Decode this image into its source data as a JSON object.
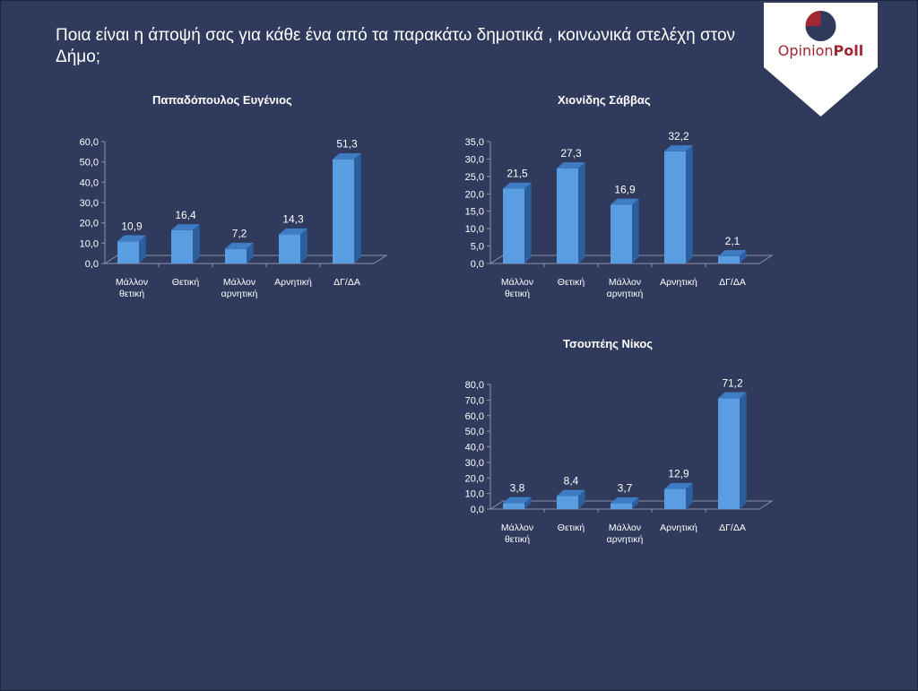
{
  "page": {
    "title": "Ποια είναι η άποψή σας για κάθε ένα από τα παρακάτω δημοτικά , κοινωνικά στελέχη στον Δήμο;"
  },
  "logo": {
    "word1": "Opinion",
    "word2": "Poll"
  },
  "colors": {
    "background": "#2f3a5c",
    "bar_front": "#5a9de0",
    "bar_side": "#2c5f9e",
    "bar_top": "#3f7cc4",
    "logo_text": "#a32732"
  },
  "chart_data": [
    {
      "type": "bar",
      "title": "Παπαδόπουλος Ευγένιος",
      "categories": [
        [
          "Μάλλον",
          "θετική"
        ],
        [
          "Θετική"
        ],
        [
          "Μάλλον",
          "αρνητική"
        ],
        [
          "Αρνητική"
        ],
        [
          "ΔΓ/ΔΑ"
        ]
      ],
      "values": [
        10.9,
        16.4,
        7.2,
        14.3,
        51.3
      ],
      "value_labels": [
        "10,9",
        "16,4",
        "7,2",
        "14,3",
        "51,3"
      ],
      "ylim": [
        0,
        60
      ],
      "yticks": [
        "0,0",
        "10,0",
        "20,0",
        "30,0",
        "40,0",
        "50,0",
        "60,0"
      ],
      "grid": false
    },
    {
      "type": "bar",
      "title": "Χιονίδης Σάββας",
      "categories": [
        [
          "Μάλλον",
          "θετική"
        ],
        [
          "Θετική"
        ],
        [
          "Μάλλον",
          "αρνητική"
        ],
        [
          "Αρνητική"
        ],
        [
          "ΔΓ/ΔΑ"
        ]
      ],
      "values": [
        21.5,
        27.3,
        16.9,
        32.2,
        2.1
      ],
      "value_labels": [
        "21,5",
        "27,3",
        "16,9",
        "32,2",
        "2,1"
      ],
      "ylim": [
        0,
        35
      ],
      "yticks": [
        "0,0",
        "5,0",
        "10,0",
        "15,0",
        "20,0",
        "25,0",
        "30,0",
        "35,0"
      ],
      "grid": false
    },
    {
      "type": "bar",
      "title": "Τσουπέης Νίκος",
      "categories": [
        [
          "Μάλλον",
          "θετική"
        ],
        [
          "Θετική"
        ],
        [
          "Μάλλον",
          "αρνητική"
        ],
        [
          "Αρνητική"
        ],
        [
          "ΔΓ/ΔΑ"
        ]
      ],
      "values": [
        3.8,
        8.4,
        3.7,
        12.9,
        71.2
      ],
      "value_labels": [
        "3,8",
        "8,4",
        "3,7",
        "12,9",
        "71,2"
      ],
      "ylim": [
        0,
        80
      ],
      "yticks": [
        "0,0",
        "10,0",
        "20,0",
        "30,0",
        "40,0",
        "50,0",
        "60,0",
        "70,0",
        "80,0"
      ],
      "grid": false
    }
  ]
}
